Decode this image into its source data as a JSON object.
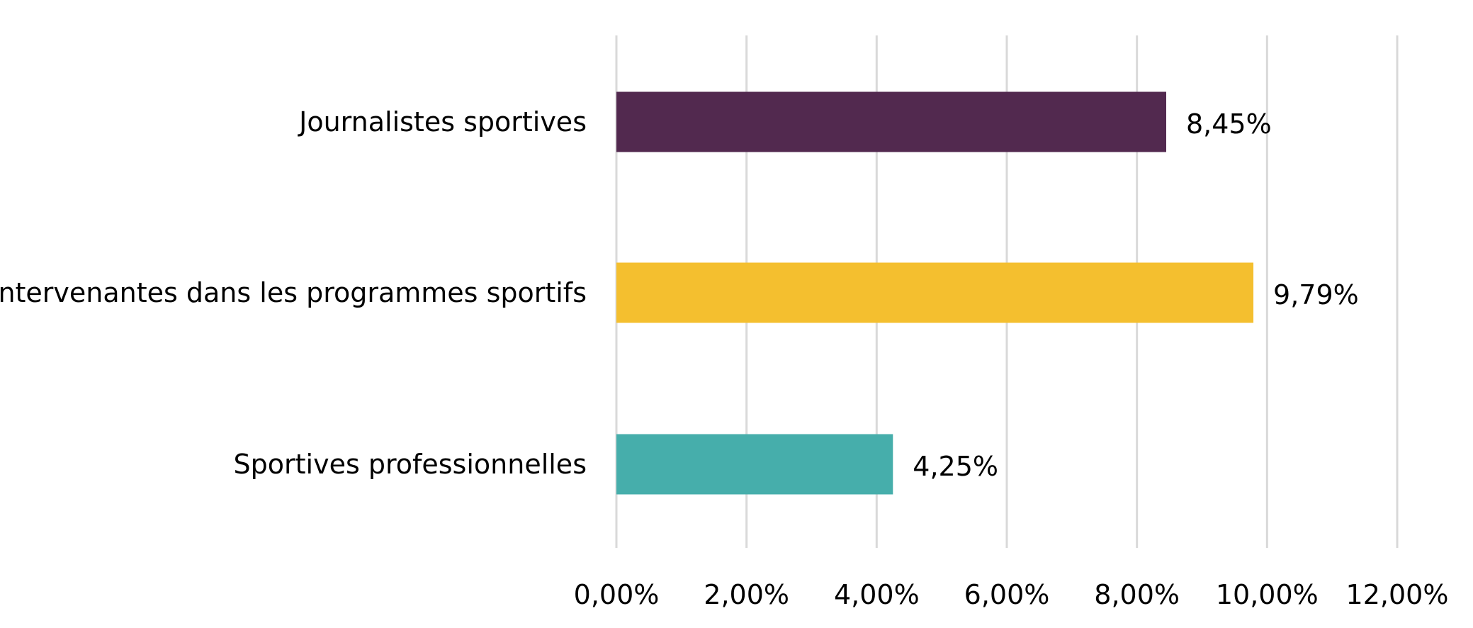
{
  "chart_data": {
    "type": "bar",
    "orientation": "horizontal",
    "categories": [
      "Journalistes sportives",
      "Intervenantes dans les programmes sportifs",
      "Sportives professionnelles"
    ],
    "values": [
      8.45,
      9.79,
      4.25
    ],
    "value_labels": [
      "8,45%",
      "9,79%",
      "4,25%"
    ],
    "colors": [
      "#52294f",
      "#f4bf2f",
      "#46aeab"
    ],
    "xlim": [
      0,
      12
    ],
    "xticks": [
      0,
      2,
      4,
      6,
      8,
      10,
      12
    ],
    "xtick_labels": [
      "0,00%",
      "2,00%",
      "4,00%",
      "6,00%",
      "8,00%",
      "10,00%",
      "12,00%"
    ],
    "grid": true,
    "legend": "none"
  }
}
